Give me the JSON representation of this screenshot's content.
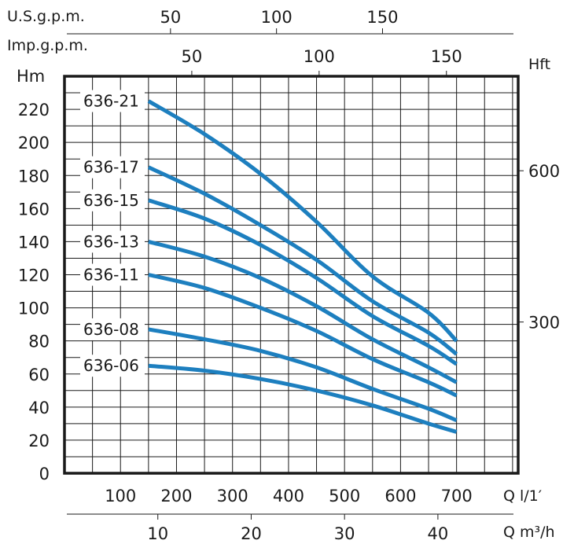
{
  "chart_data": {
    "type": "line",
    "title": "",
    "units": {
      "left": "Hm",
      "right": "Hft",
      "top_us": "U.S.g.p.m.",
      "top_imp": "Imp.g.p.m.",
      "bottom_lpm": "Q l/1′",
      "bottom_m3h": "Q m³/h"
    },
    "y_axis": {
      "ylim": [
        0,
        240
      ],
      "ticks": [
        0,
        20,
        40,
        60,
        80,
        100,
        120,
        140,
        160,
        180,
        200,
        220
      ]
    },
    "x_axis": {
      "xlim": [
        0,
        810
      ],
      "ticks": [
        100,
        200,
        300,
        400,
        500,
        600,
        700
      ]
    },
    "right_axis": {
      "unit_per_m": 3.28084,
      "ticks": [
        300,
        600
      ]
    },
    "m3h_axis": {
      "ticks": [
        10,
        20,
        30,
        40
      ],
      "lpm_per_unit": 16.6667
    },
    "us_gpm_axis": {
      "ticks": [
        50,
        100,
        150
      ],
      "lpm_per_unit": 3.78541
    },
    "imp_gpm_axis": {
      "ticks": [
        50,
        100,
        150
      ],
      "lpm_per_unit": 4.54609
    },
    "grid": true,
    "series": [
      {
        "name": "636-21",
        "x": [
          150,
          250,
          350,
          450,
          550,
          650,
          700
        ],
        "y": [
          225,
          205,
          181,
          152,
          119,
          97,
          80
        ]
      },
      {
        "name": "636-17",
        "x": [
          150,
          250,
          350,
          450,
          550,
          650,
          700
        ],
        "y": [
          185,
          169,
          150,
          129,
          104,
          85,
          72
        ]
      },
      {
        "name": "636-15",
        "x": [
          150,
          250,
          350,
          450,
          550,
          650,
          700
        ],
        "y": [
          165,
          154,
          138,
          118,
          95,
          77,
          66
        ]
      },
      {
        "name": "636-13",
        "x": [
          150,
          250,
          350,
          450,
          550,
          650,
          700
        ],
        "y": [
          140,
          131,
          118,
          101,
          81,
          64,
          55
        ]
      },
      {
        "name": "636-11",
        "x": [
          150,
          250,
          350,
          450,
          550,
          650,
          700
        ],
        "y": [
          120,
          112,
          100,
          86,
          69,
          55,
          47
        ]
      },
      {
        "name": "636-08",
        "x": [
          150,
          250,
          350,
          450,
          550,
          650,
          700
        ],
        "y": [
          87,
          81,
          74,
          64,
          51,
          39,
          32
        ]
      },
      {
        "name": "636-06",
        "x": [
          150,
          250,
          350,
          450,
          550,
          650,
          700
        ],
        "y": [
          65,
          62,
          57,
          50,
          41,
          30,
          25
        ]
      }
    ],
    "colors": {
      "curve": "#1d7fbf",
      "grid": "#1a1a1a",
      "text": "#1a1a1a"
    }
  }
}
